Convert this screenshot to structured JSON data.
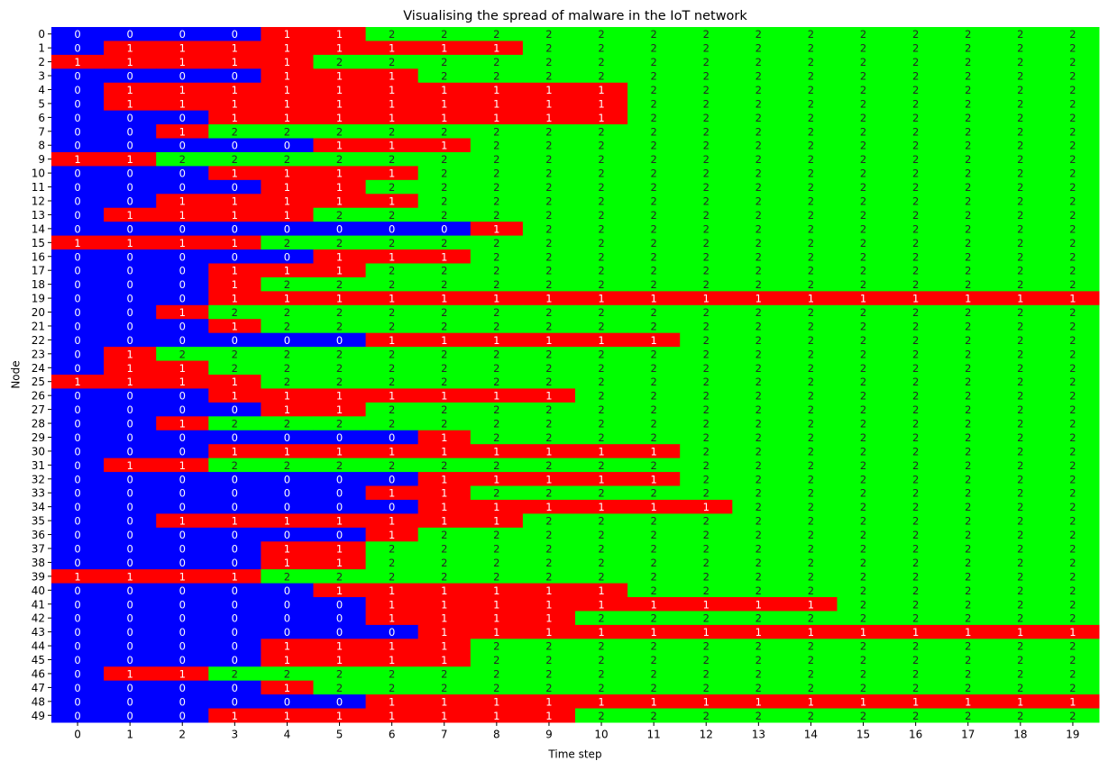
{
  "chart_data": {
    "type": "heatmap",
    "title": "Visualising the spread of malware in the IoT network",
    "xlabel": "Time step",
    "ylabel": "Node",
    "x": [
      0,
      1,
      2,
      3,
      4,
      5,
      6,
      7,
      8,
      9,
      10,
      11,
      12,
      13,
      14,
      15,
      16,
      17,
      18,
      19
    ],
    "y": [
      0,
      1,
      2,
      3,
      4,
      5,
      6,
      7,
      8,
      9,
      10,
      11,
      12,
      13,
      14,
      15,
      16,
      17,
      18,
      19,
      20,
      21,
      22,
      23,
      24,
      25,
      26,
      27,
      28,
      29,
      30,
      31,
      32,
      33,
      34,
      35,
      36,
      37,
      38,
      39,
      40,
      41,
      42,
      43,
      44,
      45,
      46,
      47,
      48,
      49
    ],
    "cmap": [
      "#0000ff",
      "#ff0000",
      "#00ff00"
    ],
    "clim": [
      0,
      2
    ],
    "annotate": true,
    "values": [
      [
        0,
        0,
        0,
        0,
        1,
        1,
        2,
        2,
        2,
        2,
        2,
        2,
        2,
        2,
        2,
        2,
        2,
        2,
        2,
        2
      ],
      [
        0,
        1,
        1,
        1,
        1,
        1,
        1,
        1,
        1,
        2,
        2,
        2,
        2,
        2,
        2,
        2,
        2,
        2,
        2,
        2
      ],
      [
        1,
        1,
        1,
        1,
        1,
        2,
        2,
        2,
        2,
        2,
        2,
        2,
        2,
        2,
        2,
        2,
        2,
        2,
        2,
        2
      ],
      [
        0,
        0,
        0,
        0,
        1,
        1,
        1,
        2,
        2,
        2,
        2,
        2,
        2,
        2,
        2,
        2,
        2,
        2,
        2,
        2
      ],
      [
        0,
        1,
        1,
        1,
        1,
        1,
        1,
        1,
        1,
        1,
        1,
        2,
        2,
        2,
        2,
        2,
        2,
        2,
        2,
        2
      ],
      [
        0,
        1,
        1,
        1,
        1,
        1,
        1,
        1,
        1,
        1,
        1,
        2,
        2,
        2,
        2,
        2,
        2,
        2,
        2,
        2
      ],
      [
        0,
        0,
        0,
        1,
        1,
        1,
        1,
        1,
        1,
        1,
        1,
        2,
        2,
        2,
        2,
        2,
        2,
        2,
        2,
        2
      ],
      [
        0,
        0,
        1,
        2,
        2,
        2,
        2,
        2,
        2,
        2,
        2,
        2,
        2,
        2,
        2,
        2,
        2,
        2,
        2,
        2
      ],
      [
        0,
        0,
        0,
        0,
        0,
        1,
        1,
        1,
        2,
        2,
        2,
        2,
        2,
        2,
        2,
        2,
        2,
        2,
        2,
        2
      ],
      [
        1,
        1,
        2,
        2,
        2,
        2,
        2,
        2,
        2,
        2,
        2,
        2,
        2,
        2,
        2,
        2,
        2,
        2,
        2,
        2
      ],
      [
        0,
        0,
        0,
        1,
        1,
        1,
        1,
        2,
        2,
        2,
        2,
        2,
        2,
        2,
        2,
        2,
        2,
        2,
        2,
        2
      ],
      [
        0,
        0,
        0,
        0,
        1,
        1,
        2,
        2,
        2,
        2,
        2,
        2,
        2,
        2,
        2,
        2,
        2,
        2,
        2,
        2
      ],
      [
        0,
        0,
        1,
        1,
        1,
        1,
        1,
        2,
        2,
        2,
        2,
        2,
        2,
        2,
        2,
        2,
        2,
        2,
        2,
        2
      ],
      [
        0,
        1,
        1,
        1,
        1,
        2,
        2,
        2,
        2,
        2,
        2,
        2,
        2,
        2,
        2,
        2,
        2,
        2,
        2,
        2
      ],
      [
        0,
        0,
        0,
        0,
        0,
        0,
        0,
        0,
        1,
        2,
        2,
        2,
        2,
        2,
        2,
        2,
        2,
        2,
        2,
        2
      ],
      [
        1,
        1,
        1,
        1,
        2,
        2,
        2,
        2,
        2,
        2,
        2,
        2,
        2,
        2,
        2,
        2,
        2,
        2,
        2,
        2
      ],
      [
        0,
        0,
        0,
        0,
        0,
        1,
        1,
        1,
        2,
        2,
        2,
        2,
        2,
        2,
        2,
        2,
        2,
        2,
        2,
        2
      ],
      [
        0,
        0,
        0,
        1,
        1,
        1,
        2,
        2,
        2,
        2,
        2,
        2,
        2,
        2,
        2,
        2,
        2,
        2,
        2,
        2
      ],
      [
        0,
        0,
        0,
        1,
        2,
        2,
        2,
        2,
        2,
        2,
        2,
        2,
        2,
        2,
        2,
        2,
        2,
        2,
        2,
        2
      ],
      [
        0,
        0,
        0,
        1,
        1,
        1,
        1,
        1,
        1,
        1,
        1,
        1,
        1,
        1,
        1,
        1,
        1,
        1,
        1,
        1
      ],
      [
        0,
        0,
        1,
        2,
        2,
        2,
        2,
        2,
        2,
        2,
        2,
        2,
        2,
        2,
        2,
        2,
        2,
        2,
        2,
        2
      ],
      [
        0,
        0,
        0,
        1,
        2,
        2,
        2,
        2,
        2,
        2,
        2,
        2,
        2,
        2,
        2,
        2,
        2,
        2,
        2,
        2
      ],
      [
        0,
        0,
        0,
        0,
        0,
        0,
        1,
        1,
        1,
        1,
        1,
        1,
        2,
        2,
        2,
        2,
        2,
        2,
        2,
        2
      ],
      [
        0,
        1,
        2,
        2,
        2,
        2,
        2,
        2,
        2,
        2,
        2,
        2,
        2,
        2,
        2,
        2,
        2,
        2,
        2,
        2
      ],
      [
        0,
        1,
        1,
        2,
        2,
        2,
        2,
        2,
        2,
        2,
        2,
        2,
        2,
        2,
        2,
        2,
        2,
        2,
        2,
        2
      ],
      [
        1,
        1,
        1,
        1,
        2,
        2,
        2,
        2,
        2,
        2,
        2,
        2,
        2,
        2,
        2,
        2,
        2,
        2,
        2,
        2
      ],
      [
        0,
        0,
        0,
        1,
        1,
        1,
        1,
        1,
        1,
        1,
        2,
        2,
        2,
        2,
        2,
        2,
        2,
        2,
        2,
        2
      ],
      [
        0,
        0,
        0,
        0,
        1,
        1,
        2,
        2,
        2,
        2,
        2,
        2,
        2,
        2,
        2,
        2,
        2,
        2,
        2,
        2
      ],
      [
        0,
        0,
        1,
        2,
        2,
        2,
        2,
        2,
        2,
        2,
        2,
        2,
        2,
        2,
        2,
        2,
        2,
        2,
        2,
        2
      ],
      [
        0,
        0,
        0,
        0,
        0,
        0,
        0,
        1,
        2,
        2,
        2,
        2,
        2,
        2,
        2,
        2,
        2,
        2,
        2,
        2
      ],
      [
        0,
        0,
        0,
        1,
        1,
        1,
        1,
        1,
        1,
        1,
        1,
        1,
        2,
        2,
        2,
        2,
        2,
        2,
        2,
        2
      ],
      [
        0,
        1,
        1,
        2,
        2,
        2,
        2,
        2,
        2,
        2,
        2,
        2,
        2,
        2,
        2,
        2,
        2,
        2,
        2,
        2
      ],
      [
        0,
        0,
        0,
        0,
        0,
        0,
        0,
        1,
        1,
        1,
        1,
        1,
        2,
        2,
        2,
        2,
        2,
        2,
        2,
        2
      ],
      [
        0,
        0,
        0,
        0,
        0,
        0,
        1,
        1,
        2,
        2,
        2,
        2,
        2,
        2,
        2,
        2,
        2,
        2,
        2,
        2
      ],
      [
        0,
        0,
        0,
        0,
        0,
        0,
        0,
        1,
        1,
        1,
        1,
        1,
        1,
        2,
        2,
        2,
        2,
        2,
        2,
        2
      ],
      [
        0,
        0,
        1,
        1,
        1,
        1,
        1,
        1,
        1,
        2,
        2,
        2,
        2,
        2,
        2,
        2,
        2,
        2,
        2,
        2
      ],
      [
        0,
        0,
        0,
        0,
        0,
        0,
        1,
        2,
        2,
        2,
        2,
        2,
        2,
        2,
        2,
        2,
        2,
        2,
        2,
        2
      ],
      [
        0,
        0,
        0,
        0,
        1,
        1,
        2,
        2,
        2,
        2,
        2,
        2,
        2,
        2,
        2,
        2,
        2,
        2,
        2,
        2
      ],
      [
        0,
        0,
        0,
        0,
        1,
        1,
        2,
        2,
        2,
        2,
        2,
        2,
        2,
        2,
        2,
        2,
        2,
        2,
        2,
        2
      ],
      [
        1,
        1,
        1,
        1,
        2,
        2,
        2,
        2,
        2,
        2,
        2,
        2,
        2,
        2,
        2,
        2,
        2,
        2,
        2,
        2
      ],
      [
        0,
        0,
        0,
        0,
        0,
        1,
        1,
        1,
        1,
        1,
        1,
        2,
        2,
        2,
        2,
        2,
        2,
        2,
        2,
        2
      ],
      [
        0,
        0,
        0,
        0,
        0,
        0,
        1,
        1,
        1,
        1,
        1,
        1,
        1,
        1,
        1,
        2,
        2,
        2,
        2,
        2
      ],
      [
        0,
        0,
        0,
        0,
        0,
        0,
        1,
        1,
        1,
        1,
        2,
        2,
        2,
        2,
        2,
        2,
        2,
        2,
        2,
        2
      ],
      [
        0,
        0,
        0,
        0,
        0,
        0,
        0,
        1,
        1,
        1,
        1,
        1,
        1,
        1,
        1,
        1,
        1,
        1,
        1,
        1
      ],
      [
        0,
        0,
        0,
        0,
        1,
        1,
        1,
        1,
        2,
        2,
        2,
        2,
        2,
        2,
        2,
        2,
        2,
        2,
        2,
        2
      ],
      [
        0,
        0,
        0,
        0,
        1,
        1,
        1,
        1,
        2,
        2,
        2,
        2,
        2,
        2,
        2,
        2,
        2,
        2,
        2,
        2
      ],
      [
        0,
        1,
        1,
        2,
        2,
        2,
        2,
        2,
        2,
        2,
        2,
        2,
        2,
        2,
        2,
        2,
        2,
        2,
        2,
        2
      ],
      [
        0,
        0,
        0,
        0,
        1,
        2,
        2,
        2,
        2,
        2,
        2,
        2,
        2,
        2,
        2,
        2,
        2,
        2,
        2,
        2
      ],
      [
        0,
        0,
        0,
        0,
        0,
        0,
        1,
        1,
        1,
        1,
        1,
        1,
        1,
        1,
        1,
        1,
        1,
        1,
        1,
        1
      ],
      [
        0,
        0,
        0,
        1,
        1,
        1,
        1,
        1,
        1,
        1,
        2,
        2,
        2,
        2,
        2,
        2,
        2,
        2,
        2,
        2
      ]
    ]
  }
}
